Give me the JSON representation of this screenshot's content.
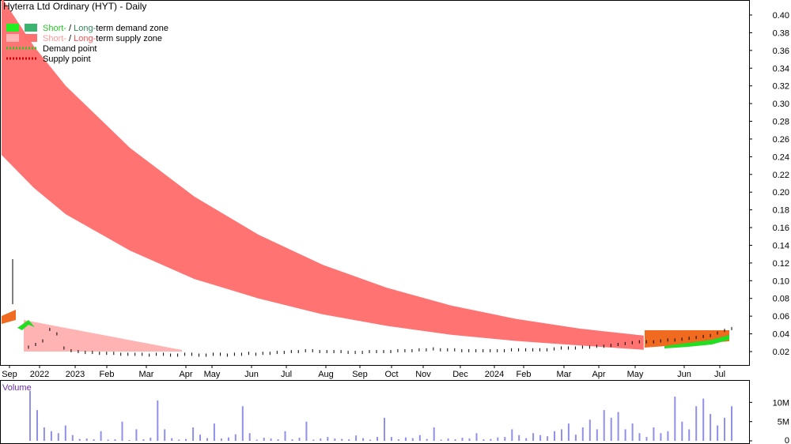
{
  "chart_data": [
    {
      "type": "candlestick",
      "title": "Hyterra Ltd Ordinary (HYT) - Daily",
      "y_axis_side": "right",
      "ylim": [
        0.0,
        0.42
      ],
      "y_ticks": [
        "0.40",
        "0.38",
        "0.36",
        "0.34",
        "0.32",
        "0.30",
        "0.28",
        "0.26",
        "0.24",
        "0.22",
        "0.20",
        "0.18",
        "0.16",
        "0.14",
        "0.12",
        "0.10",
        "0.08",
        "0.06",
        "0.04",
        "0.02"
      ],
      "y_tick_values": [
        0.4,
        0.38,
        0.36,
        0.34,
        0.32,
        0.3,
        0.28,
        0.26,
        0.24,
        0.22,
        0.2,
        0.18,
        0.16,
        0.14,
        0.12,
        0.1,
        0.08,
        0.06,
        0.04,
        0.02
      ],
      "x_ticks": [
        "Sep",
        "2022",
        "2023",
        "Feb",
        "Mar",
        "Apr",
        "May",
        "Jun",
        "Jul",
        "Aug",
        "Sep",
        "Oct",
        "Nov",
        "Dec",
        "2024",
        "Feb",
        "Mar",
        "Apr",
        "May",
        "Jun",
        "Jul"
      ],
      "grid": false,
      "legend": {
        "placement": "top-left",
        "items": [
          {
            "prefix": "Short-",
            "sep": " / ",
            "mid": "Long-",
            "suffix": "term demand zone",
            "short_color": "#22dd22",
            "long_color": "#3cb371",
            "text_color": "#000000"
          },
          {
            "prefix": "Short-",
            "sep": " / ",
            "mid": "Long-",
            "suffix": "term supply zone",
            "short_color": "#ffb6b6",
            "long_color": "#ff7070",
            "text_color": "#000000"
          },
          {
            "label": "Demand point",
            "color": "#22cc22"
          },
          {
            "label": "Supply point",
            "color": "#cc0000"
          }
        ]
      },
      "supply_zone_long": {
        "color": "#ff7373",
        "upper": [
          [
            0,
            0.42
          ],
          [
            0.05,
            0.365
          ],
          [
            0.1,
            0.32
          ],
          [
            0.2,
            0.25
          ],
          [
            0.3,
            0.195
          ],
          [
            0.4,
            0.152
          ],
          [
            0.5,
            0.118
          ],
          [
            0.6,
            0.092
          ],
          [
            0.7,
            0.072
          ],
          [
            0.8,
            0.057
          ],
          [
            0.9,
            0.046
          ],
          [
            1.0,
            0.038
          ]
        ],
        "lower": [
          [
            0,
            0.242
          ],
          [
            0.05,
            0.205
          ],
          [
            0.1,
            0.175
          ],
          [
            0.2,
            0.134
          ],
          [
            0.3,
            0.102
          ],
          [
            0.4,
            0.08
          ],
          [
            0.5,
            0.062
          ],
          [
            0.6,
            0.049
          ],
          [
            0.7,
            0.039
          ],
          [
            0.8,
            0.032
          ],
          [
            0.9,
            0.027
          ],
          [
            1.0,
            0.022
          ]
        ]
      },
      "price_series": [
        0.025,
        0.028,
        0.032,
        0.045,
        0.04,
        0.024,
        0.021,
        0.02,
        0.019,
        0.019,
        0.018,
        0.018,
        0.018,
        0.017,
        0.017,
        0.017,
        0.017,
        0.016,
        0.017,
        0.017,
        0.016,
        0.016,
        0.017,
        0.017,
        0.016,
        0.016,
        0.017,
        0.017,
        0.016,
        0.017,
        0.017,
        0.018,
        0.017,
        0.018,
        0.018,
        0.019,
        0.019,
        0.02,
        0.02,
        0.021,
        0.021,
        0.02,
        0.02,
        0.02,
        0.02,
        0.019,
        0.019,
        0.019,
        0.02,
        0.02,
        0.02,
        0.02,
        0.021,
        0.021,
        0.021,
        0.022,
        0.022,
        0.023,
        0.022,
        0.022,
        0.022,
        0.021,
        0.021,
        0.021,
        0.021,
        0.021,
        0.021,
        0.021,
        0.022,
        0.022,
        0.022,
        0.022,
        0.022,
        0.022,
        0.023,
        0.024,
        0.024,
        0.024,
        0.025,
        0.025,
        0.026,
        0.026,
        0.027,
        0.028,
        0.029,
        0.03,
        0.031,
        0.031,
        0.031,
        0.032,
        0.033,
        0.033,
        0.034,
        0.035,
        0.036,
        0.037,
        0.038,
        0.041,
        0.044,
        0.046
      ],
      "volume": {
        "label": "Volume",
        "ylim": [
          0,
          15000000
        ],
        "y_ticks": [
          "10M",
          "5M",
          "0"
        ],
        "y_tick_values": [
          10000000,
          5000000,
          0
        ],
        "color": "#9090e8",
        "values": [
          13000000,
          8000000,
          3500000,
          2500000,
          2000000,
          4000000,
          1500000,
          500000,
          600000,
          400000,
          2500000,
          300000,
          400000,
          5000000,
          200000,
          3000000,
          400000,
          800000,
          10500000,
          3000000,
          700000,
          300000,
          500000,
          3500000,
          1600000,
          700000,
          4500000,
          600000,
          900000,
          1700000,
          9000000,
          2000000,
          300000,
          800000,
          600000,
          400000,
          2500000,
          400000,
          800000,
          5000000,
          300000,
          600000,
          1000000,
          600000,
          500000,
          400000,
          1400000,
          700000,
          300000,
          1000000,
          6000000,
          1000000,
          400000,
          900000,
          700000,
          1500000,
          500000,
          3500000,
          300000,
          600000,
          400000,
          800000,
          600000,
          2000000,
          400000,
          500000,
          900000,
          1000000,
          3000000,
          1500000,
          700000,
          2000000,
          1500000,
          1200000,
          2500000,
          3000000,
          4500000,
          1600000,
          3500000,
          5500000,
          3000000,
          8000000,
          6000000,
          7500000,
          3000000,
          4500000,
          2000000,
          1000000,
          3500000,
          2000000,
          2500000,
          11500000,
          5000000,
          3000000,
          9000000,
          11000000,
          7000000,
          4000000,
          6000000,
          9000000
        ]
      }
    }
  ]
}
